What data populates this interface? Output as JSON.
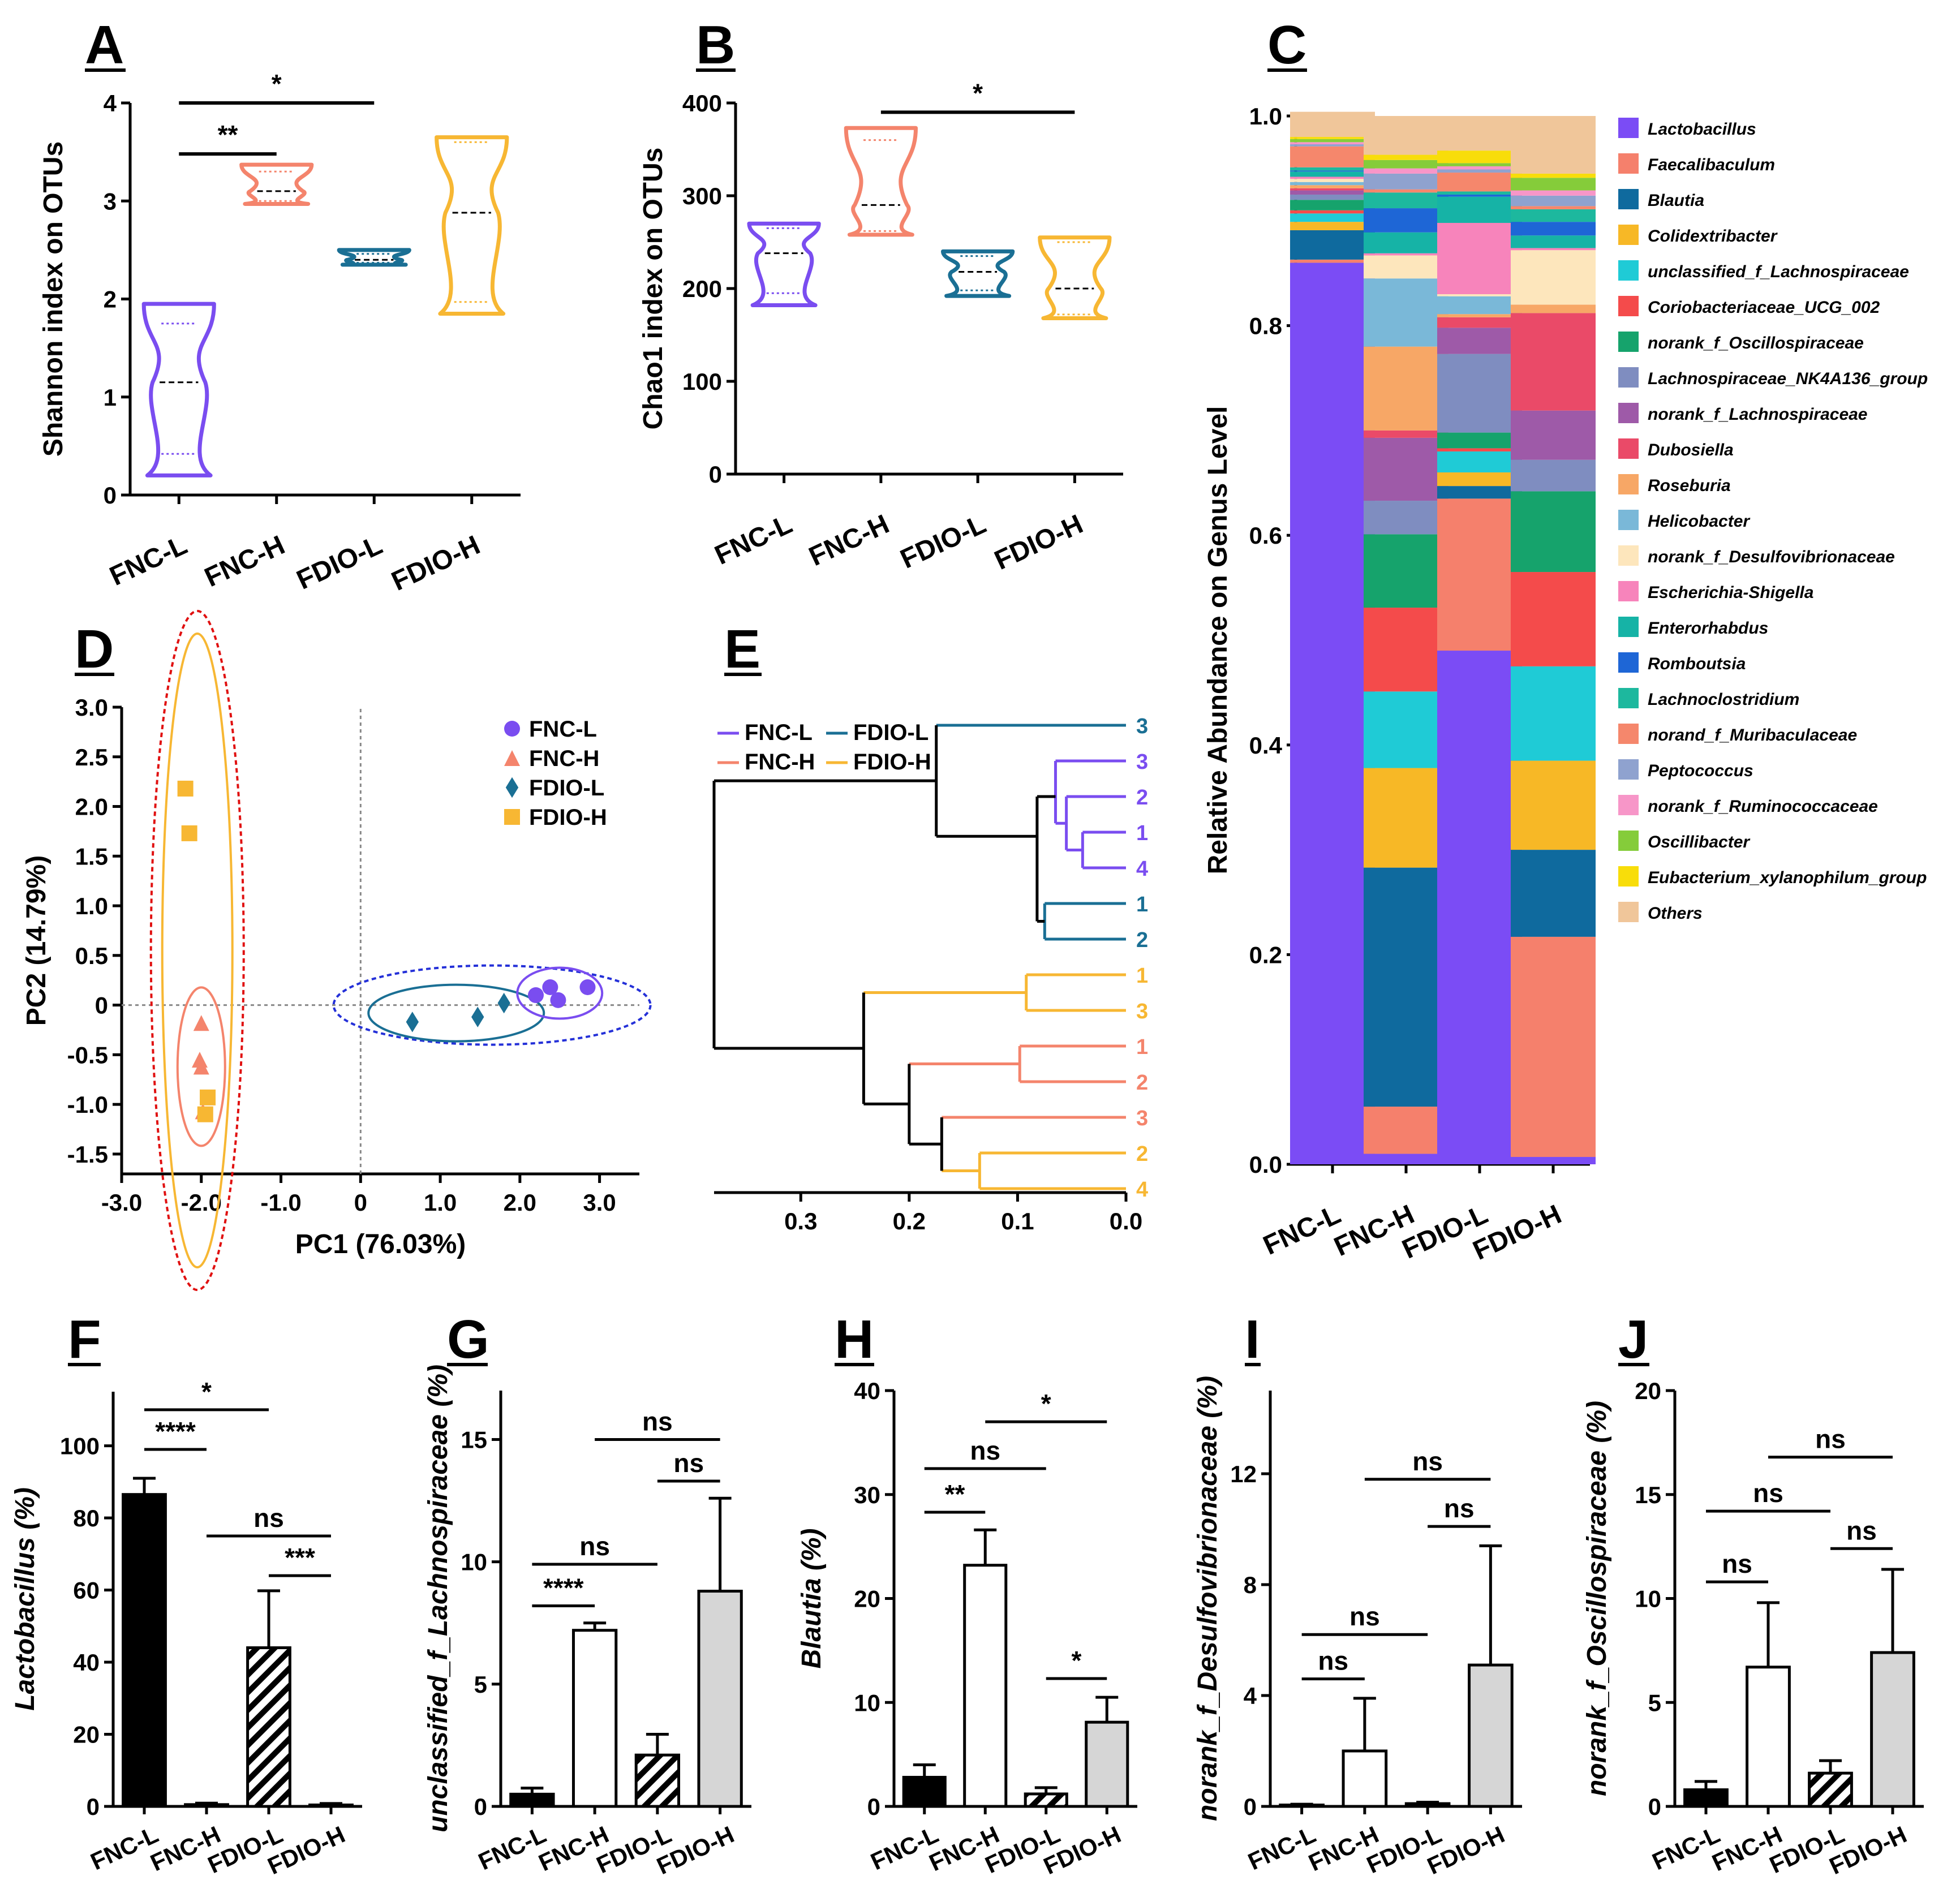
{
  "panels": {
    "A": {
      "letter": "A",
      "ylabel": "Shannon index on OTUs",
      "yticks": [
        "0",
        "1",
        "2",
        "3",
        "4"
      ],
      "ylim": [
        0,
        4
      ],
      "categories": [
        "FNC-L",
        "FNC-H",
        "FDIO-L",
        "FDIO-H"
      ],
      "colors": [
        "#7a4df0",
        "#f4846c",
        "#1a6f94",
        "#f7b733"
      ],
      "violins": [
        {
          "min": 0.2,
          "max": 1.95,
          "median": 1.15,
          "q1": 0.42,
          "q3": 1.75
        },
        {
          "min": 2.97,
          "max": 3.37,
          "median": 3.1,
          "q1": 3.0,
          "q3": 3.3
        },
        {
          "min": 2.35,
          "max": 2.5,
          "median": 2.4,
          "q1": 2.37,
          "q3": 2.46
        },
        {
          "min": 1.85,
          "max": 3.65,
          "median": 2.88,
          "q1": 1.97,
          "q3": 3.6
        }
      ],
      "sig": [
        {
          "from": 0,
          "to": 1,
          "y": 3.48,
          "label": "**"
        },
        {
          "from": 0,
          "to": 2,
          "y": 4.0,
          "label": "*"
        }
      ]
    },
    "B": {
      "letter": "B",
      "ylabel": "Chao1 index on OTUs",
      "yticks": [
        "0",
        "100",
        "200",
        "300",
        "400"
      ],
      "ylim": [
        0,
        400
      ],
      "categories": [
        "FNC-L",
        "FNC-H",
        "FDIO-L",
        "FDIO-H"
      ],
      "colors": [
        "#7a4df0",
        "#f4846c",
        "#1a6f94",
        "#f7b733"
      ],
      "violins": [
        {
          "min": 182,
          "max": 270,
          "median": 238,
          "q1": 195,
          "q3": 265
        },
        {
          "min": 258,
          "max": 373,
          "median": 290,
          "q1": 262,
          "q3": 360
        },
        {
          "min": 192,
          "max": 240,
          "median": 218,
          "q1": 198,
          "q3": 235
        },
        {
          "min": 168,
          "max": 255,
          "median": 200,
          "q1": 172,
          "q3": 250
        }
      ],
      "sig": [
        {
          "from": 1,
          "to": 3,
          "y": 390,
          "label": "*"
        }
      ]
    },
    "C": {
      "letter": "C",
      "ylabel": "Relative Abundance on Genus Level",
      "yticks": [
        "0.0",
        "0.2",
        "0.4",
        "0.6",
        "0.8",
        "1.0"
      ],
      "categories": [
        "FNC-L",
        "FNC-H",
        "FDIO-L",
        "FDIO-H"
      ]
    },
    "D": {
      "letter": "D",
      "xlabel": "PC1 (76.03%)",
      "ylabel": "PC2 (14.79%)",
      "xticks": [
        "-3.0",
        "-2.0",
        "-1.0",
        "0",
        "1.0",
        "2.0",
        "3.0"
      ],
      "yticks": [
        "-1.5",
        "-1.0",
        "-0.5",
        "0",
        "0.5",
        "1.0",
        "1.5",
        "2.0",
        "2.5",
        "3.0"
      ],
      "legend": [
        "FNC-L",
        "FNC-H",
        "FDIO-L",
        "FDIO-H"
      ]
    },
    "E": {
      "letter": "E",
      "xticks": [
        "0.3",
        "0.2",
        "0.1",
        "0.0"
      ],
      "legend": [
        "FNC-L",
        "FDIO-L",
        "FNC-H",
        "FDIO-H"
      ],
      "leaves": [
        "3",
        "3",
        "2",
        "1",
        "4",
        "1",
        "2",
        "1",
        "3",
        "1",
        "2",
        "3",
        "2",
        "4"
      ]
    },
    "F": {
      "letter": "F",
      "ylabel": "Lactobacillus (%)",
      "yticks": [
        "0",
        "20",
        "40",
        "60",
        "80",
        "100"
      ],
      "ylim": [
        0,
        115
      ],
      "categories": [
        "FNC-L",
        "FNC-H",
        "FDIO-L",
        "FDIO-H"
      ],
      "sig": [
        {
          "from": 0,
          "to": 1,
          "y": 99,
          "label": "****"
        },
        {
          "from": 0,
          "to": 2,
          "y": 110,
          "label": "*"
        },
        {
          "from": 1,
          "to": 3,
          "y": 75,
          "label": "ns"
        },
        {
          "from": 2,
          "to": 3,
          "y": 64,
          "label": "***"
        }
      ]
    },
    "G": {
      "letter": "G",
      "ylabel": "unclassified_f_Lachnospiraceae (%)",
      "yticks": [
        "0",
        "5",
        "10",
        "15"
      ],
      "ylim": [
        0,
        17
      ],
      "categories": [
        "FNC-L",
        "FNC-H",
        "FDIO-L",
        "FDIO-H"
      ],
      "sig": [
        {
          "from": 0,
          "to": 1,
          "y": 8.2,
          "label": "****"
        },
        {
          "from": 0,
          "to": 2,
          "y": 9.9,
          "label": "ns"
        },
        {
          "from": 1,
          "to": 3,
          "y": 15.0,
          "label": "ns"
        },
        {
          "from": 2,
          "to": 3,
          "y": 13.3,
          "label": "ns"
        }
      ]
    },
    "H": {
      "letter": "H",
      "ylabel": "Blautia (%)",
      "yticks": [
        "0",
        "10",
        "20",
        "30",
        "40"
      ],
      "ylim": [
        0,
        40
      ],
      "categories": [
        "FNC-L",
        "FNC-H",
        "FDIO-L",
        "FDIO-H"
      ],
      "sig": [
        {
          "from": 0,
          "to": 1,
          "y": 28.3,
          "label": "**"
        },
        {
          "from": 0,
          "to": 2,
          "y": 32.5,
          "label": "ns"
        },
        {
          "from": 1,
          "to": 3,
          "y": 37.0,
          "label": "*"
        },
        {
          "from": 2,
          "to": 3,
          "y": 12.3,
          "label": "*"
        }
      ]
    },
    "I": {
      "letter": "I",
      "ylabel": "norank_f_Desulfovibrionaceae (%)",
      "yticks": [
        "0",
        "4",
        "8",
        "12"
      ],
      "ylim": [
        0,
        15
      ],
      "categories": [
        "FNC-L",
        "FNC-H",
        "FDIO-L",
        "FDIO-H"
      ],
      "sig": [
        {
          "from": 0,
          "to": 1,
          "y": 4.6,
          "label": "ns"
        },
        {
          "from": 0,
          "to": 2,
          "y": 6.2,
          "label": "ns"
        },
        {
          "from": 1,
          "to": 3,
          "y": 11.8,
          "label": "ns"
        },
        {
          "from": 2,
          "to": 3,
          "y": 10.1,
          "label": "ns"
        }
      ]
    },
    "J": {
      "letter": "J",
      "ylabel": "norank_f_Oscillospiraceae (%)",
      "yticks": [
        "0",
        "5",
        "10",
        "15",
        "20"
      ],
      "ylim": [
        0,
        20
      ],
      "categories": [
        "FNC-L",
        "FNC-H",
        "FDIO-L",
        "FDIO-H"
      ],
      "sig": [
        {
          "from": 0,
          "to": 1,
          "y": 10.8,
          "label": "ns"
        },
        {
          "from": 0,
          "to": 2,
          "y": 14.2,
          "label": "ns"
        },
        {
          "from": 1,
          "to": 3,
          "y": 16.8,
          "label": "ns"
        },
        {
          "from": 2,
          "to": 3,
          "y": 12.4,
          "label": "ns"
        }
      ]
    }
  },
  "chart_data": [
    {
      "panel": "C",
      "type": "bar",
      "stacked": true,
      "ylabel": "Relative Abundance on Genus Level",
      "ylim": [
        0,
        1.0
      ],
      "categories": [
        "FNC-L",
        "FNC-H",
        "FDIO-L",
        "FDIO-H"
      ],
      "series": [
        {
          "name": "Lactobacillus",
          "color": "#7b4cf5",
          "values": [
            0.86,
            0.01,
            0.49,
            0.007
          ]
        },
        {
          "name": "Faecalibaculum",
          "color": "#f5806c",
          "values": [
            0.003,
            0.045,
            0.145,
            0.21
          ]
        },
        {
          "name": "Blautia",
          "color": "#0f6a9e",
          "values": [
            0.028,
            0.228,
            0.012,
            0.083
          ]
        },
        {
          "name": "Colidextribacter",
          "color": "#f7b826",
          "values": [
            0.008,
            0.095,
            0.013,
            0.085
          ]
        },
        {
          "name": "unclassified_f_Lachnospiraceae",
          "color": "#1fcbd6",
          "values": [
            0.008,
            0.073,
            0.02,
            0.09
          ]
        },
        {
          "name": "Coriobacteriaceae_UCG_002",
          "color": "#f44b4b",
          "values": [
            0.003,
            0.08,
            0.003,
            0.09
          ]
        },
        {
          "name": "norank_f_Oscillospiraceae",
          "color": "#16a36c",
          "values": [
            0.01,
            0.07,
            0.015,
            0.077
          ]
        },
        {
          "name": "Lachnospiraceae_NK4A136_group",
          "color": "#7f8dc0",
          "values": [
            0.005,
            0.032,
            0.075,
            0.03
          ]
        },
        {
          "name": "norank_f_Lachnospiraceae",
          "color": "#9e5aa8",
          "values": [
            0.004,
            0.06,
            0.025,
            0.047
          ]
        },
        {
          "name": "Dubosiella",
          "color": "#ea4a68",
          "values": [
            0.002,
            0.007,
            0.01,
            0.093
          ]
        },
        {
          "name": "Roseburia",
          "color": "#f7a766",
          "values": [
            0.003,
            0.08,
            0.003,
            0.008
          ]
        },
        {
          "name": "Helicobacter",
          "color": "#7ab8d8",
          "values": [
            0.003,
            0.065,
            0.017,
            0.0
          ]
        },
        {
          "name": "norank_f_Desulfovibrionaceae",
          "color": "#fde6bc",
          "values": [
            0.003,
            0.022,
            0.002,
            0.052
          ]
        },
        {
          "name": "Escherichia-Shigella",
          "color": "#f784bb",
          "values": [
            0.002,
            0.002,
            0.068,
            0.002
          ]
        },
        {
          "name": "Enterorhabdus",
          "color": "#16b3a6",
          "values": [
            0.005,
            0.02,
            0.025,
            0.012
          ]
        },
        {
          "name": "Romboutsia",
          "color": "#1e66d6",
          "values": [
            0.001,
            0.023,
            0.002,
            0.013
          ]
        },
        {
          "name": "Lachnoclostridium",
          "color": "#1db89e",
          "values": [
            0.003,
            0.015,
            0.003,
            0.012
          ]
        },
        {
          "name": "norand_f_Muribaculaceae",
          "color": "#f5876c",
          "values": [
            0.02,
            0.003,
            0.018,
            0.003
          ]
        },
        {
          "name": "Peptococcus",
          "color": "#8fa2cf",
          "values": [
            0.002,
            0.015,
            0.003,
            0.01
          ]
        },
        {
          "name": "norank_f_Ruminococcaceae",
          "color": "#f796c8",
          "values": [
            0.002,
            0.005,
            0.003,
            0.005
          ]
        },
        {
          "name": "Oscillibacter",
          "color": "#85cc3a",
          "values": [
            0.003,
            0.008,
            0.003,
            0.012
          ]
        },
        {
          "name": "Eubacterium_xylanophilum_group",
          "color": "#f8dd0a",
          "values": [
            0.002,
            0.005,
            0.012,
            0.004
          ]
        },
        {
          "name": "Others",
          "color": "#f0c69a",
          "values": [
            0.024,
            0.037,
            0.033,
            0.055
          ]
        }
      ]
    },
    {
      "panel": "D",
      "type": "scatter",
      "xlabel": "PC1 (76.03%)",
      "ylabel": "PC2 (14.79%)",
      "xlim": [
        -3.0,
        3.5
      ],
      "ylim": [
        -1.7,
        3.0
      ],
      "series": [
        {
          "name": "FNC-L",
          "marker": "circle",
          "color": "#7a4df0",
          "points": [
            [
              2.2,
              0.1
            ],
            [
              2.38,
              0.18
            ],
            [
              2.48,
              0.05
            ],
            [
              2.85,
              0.18
            ]
          ]
        },
        {
          "name": "FNC-H",
          "marker": "triangle",
          "color": "#f4846c",
          "points": [
            [
              -2.0,
              -0.18
            ],
            [
              -2.02,
              -0.55
            ],
            [
              -2.0,
              -0.62
            ],
            [
              -1.98,
              -1.07
            ]
          ]
        },
        {
          "name": "FDIO-L",
          "marker": "diamond",
          "color": "#1a6f94",
          "points": [
            [
              0.65,
              -0.17
            ],
            [
              1.47,
              -0.12
            ],
            [
              1.8,
              0.02
            ]
          ]
        },
        {
          "name": "FDIO-H",
          "marker": "square",
          "color": "#f7b733",
          "points": [
            [
              -2.2,
              2.18
            ],
            [
              -2.15,
              1.73
            ],
            [
              -1.92,
              -0.93
            ],
            [
              -1.95,
              -1.1
            ]
          ]
        }
      ]
    },
    {
      "panel": "F",
      "type": "bar",
      "ylabel": "Lactobacillus (%)",
      "ylim": [
        0,
        115
      ],
      "categories": [
        "FNC-L",
        "FNC-H",
        "FDIO-L",
        "FDIO-H"
      ],
      "values": [
        86.5,
        0.5,
        44.0,
        0.4
      ],
      "errors": [
        4.5,
        0.4,
        15.8,
        0.4
      ]
    },
    {
      "panel": "G",
      "type": "bar",
      "ylabel": "unclassified_f_Lachnospiraceae (%)",
      "ylim": [
        0,
        17
      ],
      "categories": [
        "FNC-L",
        "FNC-H",
        "FDIO-L",
        "FDIO-H"
      ],
      "values": [
        0.5,
        7.2,
        2.1,
        8.8
      ],
      "errors": [
        0.25,
        0.3,
        0.85,
        3.8
      ]
    },
    {
      "panel": "H",
      "type": "bar",
      "ylabel": "Blautia (%)",
      "ylim": [
        0,
        40
      ],
      "categories": [
        "FNC-L",
        "FNC-H",
        "FDIO-L",
        "FDIO-H"
      ],
      "values": [
        2.8,
        23.2,
        1.2,
        8.1
      ],
      "errors": [
        1.2,
        3.4,
        0.6,
        2.4
      ]
    },
    {
      "panel": "I",
      "type": "bar",
      "ylabel": "norank_f_Desulfovibrionaceae (%)",
      "ylim": [
        0,
        15
      ],
      "categories": [
        "FNC-L",
        "FNC-H",
        "FDIO-L",
        "FDIO-H"
      ],
      "values": [
        0.05,
        2.0,
        0.1,
        5.1
      ],
      "errors": [
        0.03,
        1.9,
        0.05,
        4.3
      ]
    },
    {
      "panel": "J",
      "type": "bar",
      "ylabel": "norank_f_Oscillospiraceae (%)",
      "ylim": [
        0,
        20
      ],
      "categories": [
        "FNC-L",
        "FNC-H",
        "FDIO-L",
        "FDIO-H"
      ],
      "values": [
        0.8,
        6.7,
        1.6,
        7.4
      ],
      "errors": [
        0.4,
        3.1,
        0.6,
        4.0
      ]
    }
  ]
}
